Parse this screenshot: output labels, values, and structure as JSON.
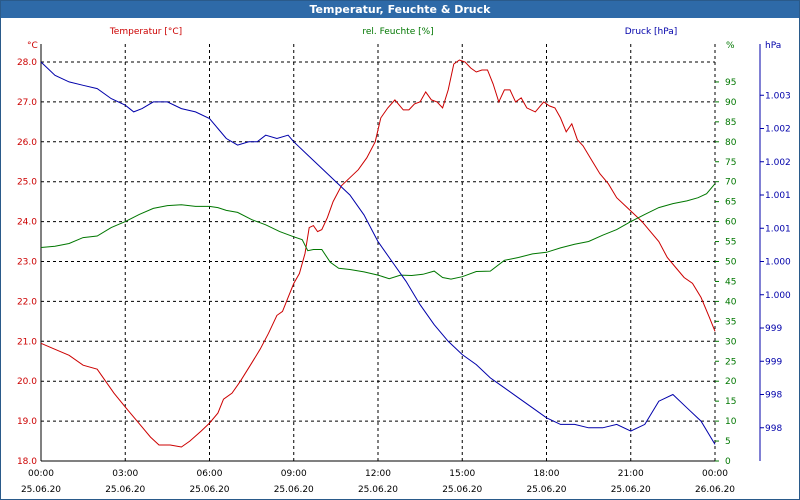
{
  "window": {
    "title": "Temperatur, Feuchte & Druck"
  },
  "colors": {
    "temp": "#cc0000",
    "hum": "#007700",
    "press": "#0000aa",
    "title_bg": "#2e6aa8",
    "grid": "#000000"
  },
  "chart_data": {
    "type": "line",
    "title": "Temperatur, Feuchte & Druck",
    "grid": true,
    "x_ticks": [
      {
        "time": "00:00",
        "date": "25.06.20"
      },
      {
        "time": "03:00",
        "date": "25.06.20"
      },
      {
        "time": "06:00",
        "date": "25.06.20"
      },
      {
        "time": "09:00",
        "date": "25.06.20"
      },
      {
        "time": "12:00",
        "date": "25.06.20"
      },
      {
        "time": "15:00",
        "date": "25.06.20"
      },
      {
        "time": "18:00",
        "date": "25.06.20"
      },
      {
        "time": "21:00",
        "date": "25.06.20"
      },
      {
        "time": "00:00",
        "date": "26.06.20"
      }
    ],
    "xlim_hours": [
      0,
      24
    ],
    "axes": {
      "temp": {
        "label": "Temperatur [°C]",
        "unit": "°C",
        "ylim": [
          18.0,
          28.0
        ],
        "ticks": [
          "18.0",
          "19.0",
          "20.0",
          "21.0",
          "22.0",
          "23.0",
          "24.0",
          "25.0",
          "26.0",
          "27.0",
          "28.0"
        ]
      },
      "hum": {
        "label": "rel. Feuchte [%]",
        "unit": "%",
        "ylim": [
          0,
          100
        ],
        "ticks": [
          "0",
          "5",
          "10",
          "15",
          "20",
          "25",
          "30",
          "35",
          "40",
          "45",
          "50",
          "55",
          "60",
          "65",
          "70",
          "75",
          "80",
          "85",
          "90",
          "95"
        ]
      },
      "press": {
        "label": "Druck [hPa]",
        "unit": "hPa",
        "ylim": [
          997.5,
          1003.5
        ],
        "ticks": [
          {
            "v": 998.0,
            "t": "998"
          },
          {
            "v": 998.5,
            "t": "998"
          },
          {
            "v": 999.0,
            "t": "999"
          },
          {
            "v": 999.5,
            "t": "999"
          },
          {
            "v": 1000.0,
            "t": "1.000"
          },
          {
            "v": 1000.5,
            "t": "1.000"
          },
          {
            "v": 1001.0,
            "t": "1.001"
          },
          {
            "v": 1001.5,
            "t": "1.001"
          },
          {
            "v": 1002.0,
            "t": "1.002"
          },
          {
            "v": 1002.5,
            "t": "1.002"
          },
          {
            "v": 1003.0,
            "t": "1.003"
          }
        ]
      }
    },
    "series": [
      {
        "name": "Temperatur [°C]",
        "axis": "temp",
        "points": [
          [
            0,
            20.95
          ],
          [
            0.5,
            20.8
          ],
          [
            1,
            20.65
          ],
          [
            1.5,
            20.4
          ],
          [
            2,
            20.3
          ],
          [
            2.3,
            20.0
          ],
          [
            2.6,
            19.7
          ],
          [
            3,
            19.35
          ],
          [
            3.3,
            19.1
          ],
          [
            3.6,
            18.85
          ],
          [
            3.9,
            18.6
          ],
          [
            4.2,
            18.4
          ],
          [
            4.6,
            18.4
          ],
          [
            5,
            18.35
          ],
          [
            5.3,
            18.5
          ],
          [
            5.7,
            18.75
          ],
          [
            6,
            18.95
          ],
          [
            6.3,
            19.2
          ],
          [
            6.5,
            19.55
          ],
          [
            6.8,
            19.7
          ],
          [
            7.1,
            20.0
          ],
          [
            7.5,
            20.45
          ],
          [
            7.8,
            20.8
          ],
          [
            8.1,
            21.2
          ],
          [
            8.4,
            21.65
          ],
          [
            8.6,
            21.75
          ],
          [
            8.8,
            22.1
          ],
          [
            9.0,
            22.45
          ],
          [
            9.2,
            22.7
          ],
          [
            9.4,
            23.2
          ],
          [
            9.55,
            23.85
          ],
          [
            9.7,
            23.9
          ],
          [
            9.85,
            23.75
          ],
          [
            10.0,
            23.8
          ],
          [
            10.2,
            24.1
          ],
          [
            10.4,
            24.5
          ],
          [
            10.7,
            24.9
          ],
          [
            11.0,
            25.1
          ],
          [
            11.3,
            25.3
          ],
          [
            11.6,
            25.6
          ],
          [
            11.9,
            26.0
          ],
          [
            12.1,
            26.6
          ],
          [
            12.35,
            26.85
          ],
          [
            12.6,
            27.05
          ],
          [
            12.9,
            26.8
          ],
          [
            13.1,
            26.8
          ],
          [
            13.3,
            26.95
          ],
          [
            13.5,
            27.0
          ],
          [
            13.7,
            27.25
          ],
          [
            13.9,
            27.05
          ],
          [
            14.1,
            27.0
          ],
          [
            14.3,
            26.85
          ],
          [
            14.5,
            27.3
          ],
          [
            14.7,
            27.95
          ],
          [
            14.9,
            28.05
          ],
          [
            15.1,
            28.0
          ],
          [
            15.3,
            27.85
          ],
          [
            15.5,
            27.75
          ],
          [
            15.7,
            27.8
          ],
          [
            15.9,
            27.8
          ],
          [
            16.1,
            27.45
          ],
          [
            16.3,
            27.0
          ],
          [
            16.5,
            27.3
          ],
          [
            16.7,
            27.3
          ],
          [
            16.9,
            27.0
          ],
          [
            17.1,
            27.1
          ],
          [
            17.3,
            26.85
          ],
          [
            17.6,
            26.75
          ],
          [
            17.9,
            27.0
          ],
          [
            18.1,
            26.9
          ],
          [
            18.3,
            26.85
          ],
          [
            18.5,
            26.6
          ],
          [
            18.7,
            26.25
          ],
          [
            18.9,
            26.45
          ],
          [
            19.1,
            26.05
          ],
          [
            19.3,
            25.9
          ],
          [
            19.6,
            25.55
          ],
          [
            19.9,
            25.2
          ],
          [
            20.2,
            24.95
          ],
          [
            20.5,
            24.6
          ],
          [
            20.8,
            24.4
          ],
          [
            21.1,
            24.2
          ],
          [
            21.4,
            24.0
          ],
          [
            21.7,
            23.75
          ],
          [
            22.0,
            23.5
          ],
          [
            22.3,
            23.1
          ],
          [
            22.6,
            22.85
          ],
          [
            22.9,
            22.6
          ],
          [
            23.2,
            22.45
          ],
          [
            23.5,
            22.1
          ],
          [
            23.8,
            21.6
          ],
          [
            24,
            21.25
          ]
        ]
      },
      {
        "name": "rel. Feuchte [%]",
        "axis": "hum",
        "points": [
          [
            0,
            53.5
          ],
          [
            0.5,
            53.8
          ],
          [
            1,
            54.5
          ],
          [
            1.5,
            56.0
          ],
          [
            2,
            56.4
          ],
          [
            2.5,
            58.5
          ],
          [
            3,
            60.0
          ],
          [
            3.5,
            61.8
          ],
          [
            4,
            63.3
          ],
          [
            4.5,
            64.0
          ],
          [
            5,
            64.2
          ],
          [
            5.5,
            63.8
          ],
          [
            6,
            63.8
          ],
          [
            6.3,
            63.5
          ],
          [
            6.6,
            62.8
          ],
          [
            7,
            62.3
          ],
          [
            7.5,
            60.5
          ],
          [
            8,
            59.2
          ],
          [
            8.5,
            57.5
          ],
          [
            9,
            56.2
          ],
          [
            9.3,
            55.5
          ],
          [
            9.5,
            52.7
          ],
          [
            9.7,
            53.0
          ],
          [
            10,
            53.0
          ],
          [
            10.3,
            49.8
          ],
          [
            10.6,
            48.3
          ],
          [
            11,
            48.0
          ],
          [
            11.5,
            47.4
          ],
          [
            12,
            46.6
          ],
          [
            12.4,
            45.7
          ],
          [
            12.8,
            46.6
          ],
          [
            13.2,
            46.5
          ],
          [
            13.6,
            46.8
          ],
          [
            14,
            47.6
          ],
          [
            14.3,
            46.0
          ],
          [
            14.6,
            45.6
          ],
          [
            15,
            46.2
          ],
          [
            15.5,
            47.5
          ],
          [
            16,
            47.6
          ],
          [
            16.5,
            50.3
          ],
          [
            17,
            51.0
          ],
          [
            17.5,
            51.9
          ],
          [
            18,
            52.3
          ],
          [
            18.5,
            53.4
          ],
          [
            19,
            54.3
          ],
          [
            19.5,
            55.0
          ],
          [
            20,
            56.6
          ],
          [
            20.5,
            58.0
          ],
          [
            21,
            60.0
          ],
          [
            21.5,
            61.8
          ],
          [
            22,
            63.5
          ],
          [
            22.5,
            64.5
          ],
          [
            23,
            65.2
          ],
          [
            23.4,
            66.0
          ],
          [
            23.7,
            67.0
          ],
          [
            24,
            69.5
          ]
        ]
      },
      {
        "name": "Druck [hPa]",
        "axis": "press",
        "points": [
          [
            0,
            1003.5
          ],
          [
            0.5,
            1003.3
          ],
          [
            1,
            1003.2
          ],
          [
            1.5,
            1003.15
          ],
          [
            2,
            1003.1
          ],
          [
            2.5,
            1002.95
          ],
          [
            3,
            1002.85
          ],
          [
            3.3,
            1002.75
          ],
          [
            3.6,
            1002.8
          ],
          [
            4,
            1002.9
          ],
          [
            4.5,
            1002.9
          ],
          [
            5,
            1002.8
          ],
          [
            5.5,
            1002.75
          ],
          [
            6,
            1002.65
          ],
          [
            6.3,
            1002.5
          ],
          [
            6.6,
            1002.35
          ],
          [
            7,
            1002.25
          ],
          [
            7.4,
            1002.3
          ],
          [
            7.7,
            1002.3
          ],
          [
            8,
            1002.4
          ],
          [
            8.4,
            1002.35
          ],
          [
            8.8,
            1002.4
          ],
          [
            9,
            1002.3
          ],
          [
            9.5,
            1002.1
          ],
          [
            10,
            1001.9
          ],
          [
            10.5,
            1001.7
          ],
          [
            11,
            1001.5
          ],
          [
            11.5,
            1001.2
          ],
          [
            12,
            1000.8
          ],
          [
            12.5,
            1000.5
          ],
          [
            13,
            1000.2
          ],
          [
            13.5,
            999.85
          ],
          [
            14,
            999.55
          ],
          [
            14.5,
            999.3
          ],
          [
            15,
            999.1
          ],
          [
            15.5,
            998.95
          ],
          [
            16,
            998.75
          ],
          [
            16.5,
            998.6
          ],
          [
            17,
            998.45
          ],
          [
            17.5,
            998.3
          ],
          [
            18,
            998.15
          ],
          [
            18.5,
            998.05
          ],
          [
            19,
            998.05
          ],
          [
            19.5,
            998.0
          ],
          [
            20,
            998.0
          ],
          [
            20.5,
            998.05
          ],
          [
            21,
            997.95
          ],
          [
            21.5,
            998.05
          ],
          [
            22,
            998.4
          ],
          [
            22.5,
            998.5
          ],
          [
            23,
            998.3
          ],
          [
            23.5,
            998.1
          ],
          [
            24,
            997.75
          ]
        ]
      }
    ]
  }
}
